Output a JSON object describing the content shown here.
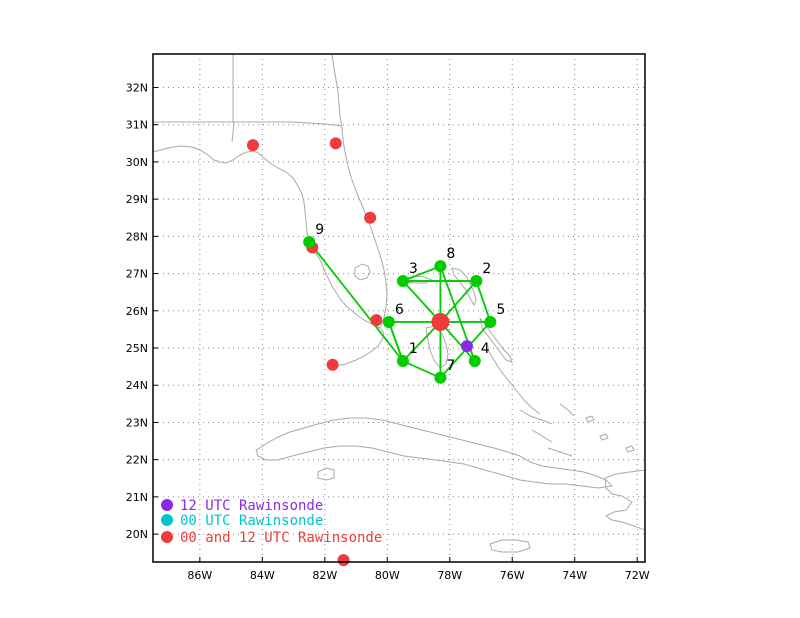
{
  "map": {
    "lon_range": [
      -87.5,
      -71.75
    ],
    "lat_range": [
      19.25,
      32.9
    ],
    "x_ticks": [
      {
        "value": -86,
        "label": "86W"
      },
      {
        "value": -84,
        "label": "84W"
      },
      {
        "value": -82,
        "label": "82W"
      },
      {
        "value": -80,
        "label": "80W"
      },
      {
        "value": -78,
        "label": "78W"
      },
      {
        "value": -76,
        "label": "76W"
      },
      {
        "value": -74,
        "label": "74W"
      },
      {
        "value": -72,
        "label": "72W"
      }
    ],
    "y_ticks": [
      {
        "value": 20,
        "label": "20N"
      },
      {
        "value": 21,
        "label": "21N"
      },
      {
        "value": 22,
        "label": "22N"
      },
      {
        "value": 23,
        "label": "23N"
      },
      {
        "value": 24,
        "label": "24N"
      },
      {
        "value": 25,
        "label": "25N"
      },
      {
        "value": 26,
        "label": "26N"
      },
      {
        "value": 27,
        "label": "27N"
      },
      {
        "value": 28,
        "label": "28N"
      },
      {
        "value": 29,
        "label": "29N"
      },
      {
        "value": 30,
        "label": "30N"
      },
      {
        "value": 31,
        "label": "31N"
      },
      {
        "value": 32,
        "label": "32N"
      }
    ],
    "grid": "dotted",
    "center": {
      "lon": -78.3,
      "lat": 25.7
    },
    "dropsondes": [
      {
        "label": "1",
        "lon": -79.5,
        "lat": 24.65
      },
      {
        "label": "2",
        "lon": -77.15,
        "lat": 26.8
      },
      {
        "label": "3",
        "lon": -79.5,
        "lat": 26.8
      },
      {
        "label": "4",
        "lon": -77.2,
        "lat": 24.65
      },
      {
        "label": "5",
        "lon": -76.7,
        "lat": 25.7
      },
      {
        "label": "6",
        "lon": -79.95,
        "lat": 25.7
      },
      {
        "label": "7",
        "lon": -78.3,
        "lat": 24.2
      },
      {
        "label": "8",
        "lon": -78.3,
        "lat": 27.2
      },
      {
        "label": "9",
        "lon": -82.5,
        "lat": 27.85
      }
    ],
    "track_sequence": [
      "9",
      "1",
      "7",
      "5",
      "2",
      "3",
      "8",
      "4"
    ],
    "rawinsondes_00_12": [
      {
        "lon": -84.3,
        "lat": 30.45
      },
      {
        "lon": -81.65,
        "lat": 30.5
      },
      {
        "lon": -80.55,
        "lat": 28.5
      },
      {
        "lon": -82.4,
        "lat": 27.7
      },
      {
        "lon": -80.35,
        "lat": 25.75
      },
      {
        "lon": -81.75,
        "lat": 24.55
      },
      {
        "lon": -81.4,
        "lat": 19.3
      }
    ],
    "rawinsondes_12": [
      {
        "lon": -77.45,
        "lat": 25.05
      }
    ],
    "colors": {
      "dropsonde": "#00cc00",
      "rawinsonde_00_12": "#ee3b3b",
      "rawinsonde_12": "#8a2be2",
      "rawinsonde_00": "#00c5cd",
      "coast": "#a9a9a9",
      "grid": "#888888"
    }
  },
  "legend": [
    {
      "text": "12 UTC Rawinsonde",
      "color": "#8a2be2"
    },
    {
      "text": "00 UTC Rawinsonde",
      "color": "#00c5cd"
    },
    {
      "text": "00 and 12 UTC Rawinsonde",
      "color": "#ee3b3b"
    }
  ]
}
